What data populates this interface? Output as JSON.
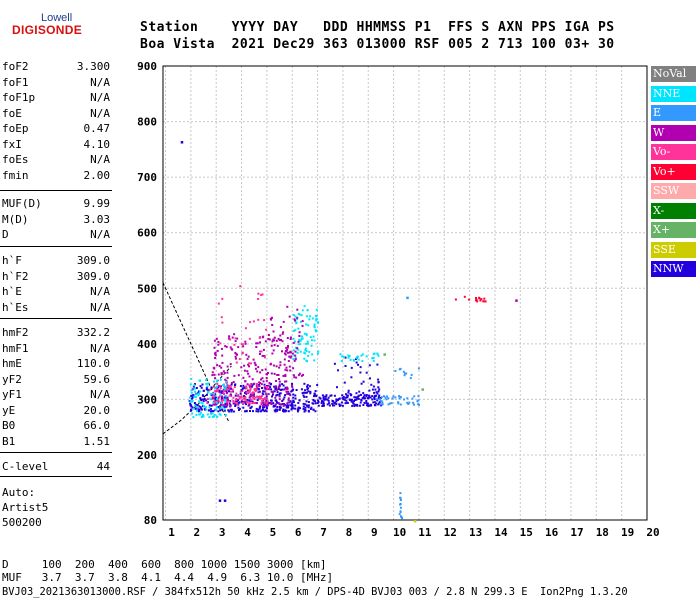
{
  "logo": {
    "line1": "Lowell",
    "line2": "DIGISONDE"
  },
  "header": {
    "row1": "Station    YYYY DAY   DDD HHMMSS P1  FFS S AXN PPS IGA PS",
    "row2": "Boa Vista  2021 Dec29 363 013000 RSF 005 2 713 100 03+ 30"
  },
  "params_group1": [
    {
      "k": "foF2",
      "v": "3.300"
    },
    {
      "k": "foF1",
      "v": "N/A"
    },
    {
      "k": "foF1p",
      "v": "N/A"
    },
    {
      "k": "foE",
      "v": "N/A"
    },
    {
      "k": "foEp",
      "v": "0.47"
    },
    {
      "k": "fxI",
      "v": "4.10"
    },
    {
      "k": "foEs",
      "v": "N/A"
    },
    {
      "k": "fmin",
      "v": "2.00"
    }
  ],
  "params_group2": [
    {
      "k": "MUF(D)",
      "v": "9.99"
    },
    {
      "k": "M(D)",
      "v": "3.03"
    },
    {
      "k": "D",
      "v": "N/A"
    }
  ],
  "params_group3": [
    {
      "k": "h`F",
      "v": "309.0"
    },
    {
      "k": "h`F2",
      "v": "309.0"
    },
    {
      "k": "h`E",
      "v": "N/A"
    },
    {
      "k": "h`Es",
      "v": "N/A"
    }
  ],
  "params_group4": [
    {
      "k": "hmF2",
      "v": "332.2"
    },
    {
      "k": "hmF1",
      "v": "N/A"
    },
    {
      "k": "hmE",
      "v": "110.0"
    },
    {
      "k": "yF2",
      "v": "59.6"
    },
    {
      "k": "yF1",
      "v": "N/A"
    },
    {
      "k": "yE",
      "v": "20.0"
    },
    {
      "k": "B0",
      "v": "66.0"
    },
    {
      "k": "B1",
      "v": "1.51"
    }
  ],
  "clevel": {
    "k": "C-level",
    "v": "44"
  },
  "auto": {
    "line1": "Auto:",
    "line2": "Artist5",
    "line3": "500200"
  },
  "bottom": {
    "d_row": "D     100  200  400  600  800 1000 1500 3000 [km]",
    "muf_row": "MUF   3.7  3.7  3.8  4.1  4.4  4.9  6.3 10.0 [MHz]",
    "file_row": "BVJ03_2021363013000.RSF / 384fx512h 50 kHz 2.5 km / DPS-4D BVJ03 003 / 2.8 N 299.3 E  Ion2Png 1.3.20"
  },
  "chart_data": {
    "type": "scatter",
    "x_ticks": [
      "1",
      "2",
      "3",
      "4",
      "5",
      "6",
      "7",
      "8",
      "9",
      "10",
      "11",
      "12",
      "13",
      "14",
      "15",
      "16",
      "17",
      "18",
      "19",
      "20"
    ],
    "y_ticks": [
      "80",
      "200",
      "300",
      "400",
      "500",
      "600",
      "700",
      "800",
      "900"
    ],
    "xlim": [
      0.9,
      20
    ],
    "ylim": [
      80,
      900
    ],
    "grid": true,
    "legend_position": "right",
    "legend": [
      {
        "label": "NoVal",
        "color": "#808080"
      },
      {
        "label": "NNE",
        "color": "#00e5ff"
      },
      {
        "label": "E",
        "color": "#3399ff"
      },
      {
        "label": "W",
        "color": "#b000b0"
      },
      {
        "label": "Vo-",
        "color": "#ff3399"
      },
      {
        "label": "Vo+",
        "color": "#ff0033"
      },
      {
        "label": "SSW",
        "color": "#ffaaaa"
      },
      {
        "label": "X-",
        "color": "#008000"
      },
      {
        "label": "X+",
        "color": "#66b366"
      },
      {
        "label": "SSE",
        "color": "#cccc00"
      },
      {
        "label": "NNW",
        "color": "#2200dd"
      }
    ],
    "clusters": [
      {
        "x": [
          1.9,
          7.0
        ],
        "y": [
          280,
          330
        ],
        "color": "#2200dd",
        "n": 420
      },
      {
        "x": [
          2.8,
          6.0
        ],
        "y": [
          290,
          420
        ],
        "color": "#b000b0",
        "n": 260
      },
      {
        "x": [
          2.6,
          5.0
        ],
        "y": [
          295,
          330
        ],
        "color": "#ff3399",
        "n": 120
      },
      {
        "x": [
          1.9,
          3.4
        ],
        "y": [
          270,
          340
        ],
        "color": "#00e5ff",
        "n": 90
      },
      {
        "x": [
          6.0,
          7.0
        ],
        "y": [
          370,
          470
        ],
        "color": "#00e5ff",
        "n": 80
      },
      {
        "x": [
          5.0,
          6.4
        ],
        "y": [
          340,
          470
        ],
        "color": "#b000b0",
        "n": 60
      },
      {
        "x": [
          7.0,
          9.5
        ],
        "y": [
          290,
          310
        ],
        "color": "#2200dd",
        "n": 130
      },
      {
        "x": [
          9.3,
          11.0
        ],
        "y": [
          292,
          308
        ],
        "color": "#3399ff",
        "n": 40
      },
      {
        "x": [
          7.6,
          9.4
        ],
        "y": [
          300,
          380
        ],
        "color": "#2200dd",
        "n": 50
      },
      {
        "x": [
          3.0,
          5.0
        ],
        "y": [
          360,
          510
        ],
        "color": "#ff3399",
        "n": 30
      },
      {
        "x": [
          7.8,
          9.4
        ],
        "y": [
          370,
          385
        ],
        "color": "#00e5ff",
        "n": 25
      },
      {
        "x": [
          10.0,
          11.0
        ],
        "y": [
          340,
          360
        ],
        "color": "#3399ff",
        "n": 10
      },
      {
        "x": [
          12.4,
          13.6
        ],
        "y": [
          478,
          487
        ],
        "color": "#ff0033",
        "n": 15
      },
      {
        "x": [
          10.2,
          10.3
        ],
        "y": [
          82,
          140
        ],
        "color": "#3399ff",
        "n": 14
      }
    ],
    "points": [
      {
        "x": 1.6,
        "y": 765,
        "color": "#2200dd"
      },
      {
        "x": 3.1,
        "y": 118,
        "color": "#2200dd"
      },
      {
        "x": 3.3,
        "y": 118,
        "color": "#2200dd"
      },
      {
        "x": 10.8,
        "y": 80,
        "color": "#cccc00"
      },
      {
        "x": 14.8,
        "y": 480,
        "color": "#b000b0"
      },
      {
        "x": 11.1,
        "y": 320,
        "color": "#66b366"
      },
      {
        "x": 9.6,
        "y": 383,
        "color": "#66b366"
      },
      {
        "x": 10.5,
        "y": 485,
        "color": "#3399ff"
      }
    ],
    "curves": [
      {
        "name": "",
        "pts": [
          [
            0.9,
            510
          ],
          [
            1.5,
            450
          ],
          [
            2.3,
            370
          ],
          [
            3.0,
            300
          ],
          [
            3.5,
            260
          ]
        ]
      },
      {
        "name": "",
        "pts": [
          [
            0.9,
            238
          ],
          [
            1.6,
            262
          ],
          [
            2.3,
            292
          ],
          [
            3.0,
            330
          ],
          [
            3.6,
            360
          ]
        ]
      }
    ]
  }
}
